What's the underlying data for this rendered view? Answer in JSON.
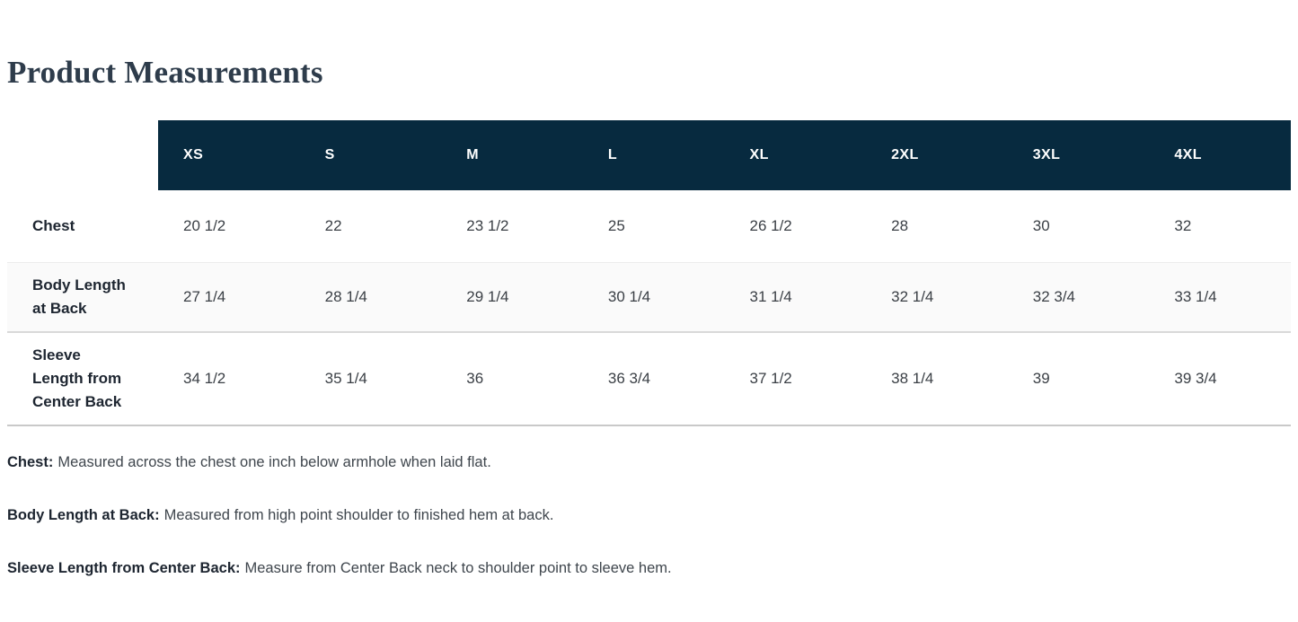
{
  "page": {
    "title": "Product Measurements"
  },
  "table": {
    "sizes": [
      "XS",
      "S",
      "M",
      "L",
      "XL",
      "2XL",
      "3XL",
      "4XL"
    ],
    "rows": [
      {
        "label": "Chest",
        "values": [
          "20 1/2",
          "22",
          "23 1/2",
          "25",
          "26 1/2",
          "28",
          "30",
          "32"
        ]
      },
      {
        "label": "Body Length at Back",
        "values": [
          "27 1/4",
          "28 1/4",
          "29 1/4",
          "30 1/4",
          "31 1/4",
          "32 1/4",
          "32 3/4",
          "33 1/4"
        ]
      },
      {
        "label": "Sleeve Length from Center Back",
        "values": [
          "34 1/2",
          "35 1/4",
          "36",
          "36 3/4",
          "37 1/2",
          "38 1/4",
          "39",
          "39 3/4"
        ]
      }
    ]
  },
  "notes": [
    {
      "label": "Chest:",
      "text": "Measured across the chest one inch below armhole when laid flat."
    },
    {
      "label": "Body Length at Back:",
      "text": "Measured from high point shoulder to finished hem at back."
    },
    {
      "label": "Sleeve Length from Center Back:",
      "text": "Measure from Center Back neck to shoulder point to sleeve hem."
    }
  ],
  "colors": {
    "header_bg": "#072a3f",
    "header_text": "#ffffff",
    "title_text": "#2e3c4b",
    "label_text": "#1d2530",
    "value_text": "#3a3f45",
    "note_text": "#3f464d",
    "row_alt_bg": "#fafafa",
    "line_light": "#ececec",
    "line_mid": "#d9d9d9",
    "line_dark": "#c9c9c9"
  }
}
